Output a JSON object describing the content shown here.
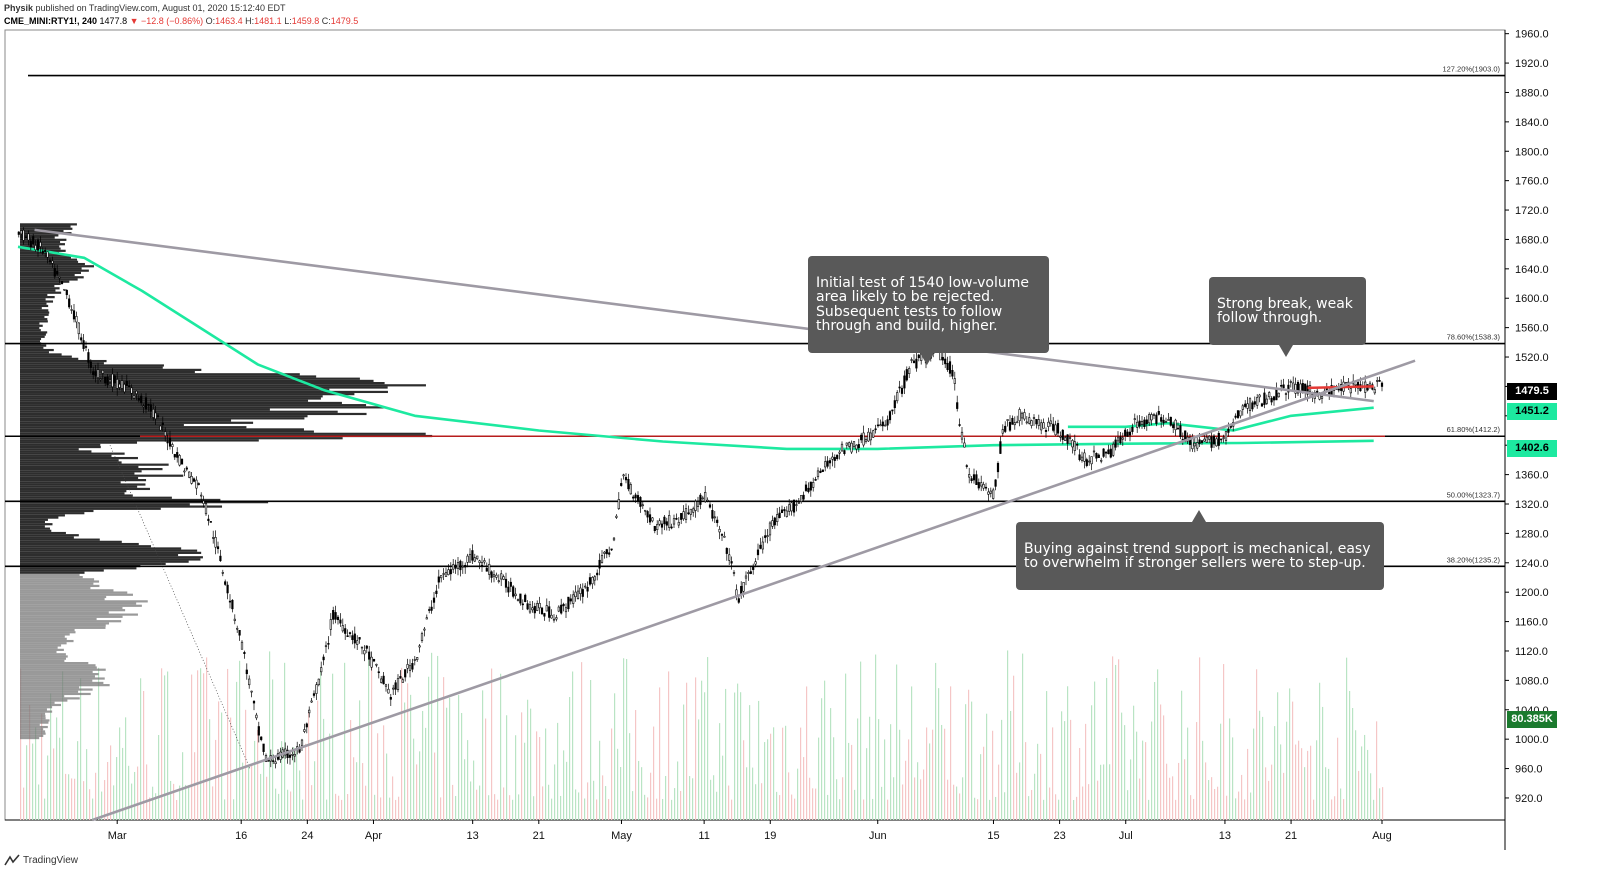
{
  "header": {
    "author": "Physik",
    "published": "published on TradingView.com, August 01, 2020 15:12:40 EDT",
    "symbol": "CME_MINI:RTY1!, 240",
    "last": "1477.8",
    "change": "−12.8 (−0.86%)",
    "o_label": "O:",
    "o": "1463.4",
    "h_label": "H:",
    "h": "1481.1",
    "l_label": "L:",
    "l": "1459.8",
    "c_label": "C:",
    "c": "1479.5"
  },
  "footer": {
    "brand": "TradingView"
  },
  "annotations": {
    "note1": "Initial test of 1540 low-volume\narea likely to be rejected.\nSubsequent tests to follow\nthrough and build, higher.",
    "note2": "Strong break, weak\nfollow through.",
    "note3": "Buying against trend support is mechanical, easy\nto overwhelm if stronger sellers were to step-up."
  },
  "price_tags": {
    "last": "1479.5",
    "ma_upper": "1451.2",
    "ma_lower": "1402.6",
    "volume": "80.385K"
  },
  "colors": {
    "ma": "#1de9a0",
    "trend": "#9e9aa4",
    "level": "#000000",
    "level_red": "#b71c1c",
    "note_bg": "#595959",
    "volume_up": "#b9e4c4",
    "volume_down": "#f5c6c6"
  },
  "chart_data": {
    "type": "candlestick",
    "y_axis": {
      "ylim": [
        890,
        1965
      ],
      "ticks": [
        920,
        960,
        1000,
        1040,
        1080,
        1120,
        1160,
        1200,
        1240,
        1280,
        1320,
        1360,
        1400,
        1440,
        1480,
        1520,
        1560,
        1600,
        1640,
        1680,
        1720,
        1760,
        1800,
        1840,
        1880,
        1920,
        1960
      ],
      "tick_labels": [
        "920.0",
        "960.0",
        "1000.0",
        "1040.0",
        "1080.0",
        "1120.0",
        "1160.0",
        "1200.0",
        "1240.0",
        "1280.0",
        "1320.0",
        "1360.0",
        "1400.0",
        "1440.0",
        "1480.0",
        "1520.0",
        "1560.0",
        "1600.0",
        "1640.0",
        "1680.0",
        "1720.0",
        "1760.0",
        "1800.0",
        "1840.0",
        "1880.0",
        "1920.0",
        "1960.0"
      ]
    },
    "x_axis": {
      "ticks": [
        {
          "label": "Mar",
          "date": "2020-03-01"
        },
        {
          "label": "16",
          "date": "2020-03-16"
        },
        {
          "label": "24",
          "date": "2020-03-24"
        },
        {
          "label": "Apr",
          "date": "2020-04-01"
        },
        {
          "label": "13",
          "date": "2020-04-13"
        },
        {
          "label": "21",
          "date": "2020-04-21"
        },
        {
          "label": "May",
          "date": "2020-05-01"
        },
        {
          "label": "11",
          "date": "2020-05-11"
        },
        {
          "label": "19",
          "date": "2020-05-19"
        },
        {
          "label": "Jun",
          "date": "2020-06-01"
        },
        {
          "label": "15",
          "date": "2020-06-15"
        },
        {
          "label": "23",
          "date": "2020-06-23"
        },
        {
          "label": "Jul",
          "date": "2020-07-01"
        },
        {
          "label": "13",
          "date": "2020-07-13"
        },
        {
          "label": "21",
          "date": "2020-07-21"
        },
        {
          "label": "Aug",
          "date": "2020-08-01"
        }
      ]
    },
    "price_path": [
      [
        "2020-02-18",
        1690
      ],
      [
        "2020-02-21",
        1665
      ],
      [
        "2020-02-24",
        1600
      ],
      [
        "2020-02-27",
        1500
      ],
      [
        "2020-03-02",
        1480
      ],
      [
        "2020-03-05",
        1450
      ],
      [
        "2020-03-09",
        1370
      ],
      [
        "2020-03-11",
        1340
      ],
      [
        "2020-03-13",
        1260
      ],
      [
        "2020-03-16",
        1130
      ],
      [
        "2020-03-18",
        1010
      ],
      [
        "2020-03-19",
        970
      ],
      [
        "2020-03-23",
        985
      ],
      [
        "2020-03-26",
        1110
      ],
      [
        "2020-03-27",
        1170
      ],
      [
        "2020-03-31",
        1120
      ],
      [
        "2020-04-03",
        1060
      ],
      [
        "2020-04-06",
        1110
      ],
      [
        "2020-04-09",
        1220
      ],
      [
        "2020-04-13",
        1250
      ],
      [
        "2020-04-17",
        1210
      ],
      [
        "2020-04-20",
        1180
      ],
      [
        "2020-04-23",
        1170
      ],
      [
        "2020-04-27",
        1210
      ],
      [
        "2020-04-30",
        1270
      ],
      [
        "2020-05-01",
        1360
      ],
      [
        "2020-05-05",
        1290
      ],
      [
        "2020-05-08",
        1300
      ],
      [
        "2020-05-11",
        1330
      ],
      [
        "2020-05-14",
        1250
      ],
      [
        "2020-05-15",
        1190
      ],
      [
        "2020-05-19",
        1290
      ],
      [
        "2020-05-22",
        1320
      ],
      [
        "2020-05-27",
        1390
      ],
      [
        "2020-05-29",
        1400
      ],
      [
        "2020-06-02",
        1430
      ],
      [
        "2020-06-05",
        1510
      ],
      [
        "2020-06-08",
        1530
      ],
      [
        "2020-06-10",
        1500
      ],
      [
        "2020-06-11",
        1420
      ],
      [
        "2020-06-12",
        1360
      ],
      [
        "2020-06-15",
        1330
      ],
      [
        "2020-06-16",
        1420
      ],
      [
        "2020-06-18",
        1440
      ],
      [
        "2020-06-23",
        1420
      ],
      [
        "2020-06-26",
        1380
      ],
      [
        "2020-06-29",
        1390
      ],
      [
        "2020-07-02",
        1430
      ],
      [
        "2020-07-06",
        1440
      ],
      [
        "2020-07-09",
        1400
      ],
      [
        "2020-07-13",
        1410
      ],
      [
        "2020-07-15",
        1450
      ],
      [
        "2020-07-17",
        1460
      ],
      [
        "2020-07-21",
        1480
      ],
      [
        "2020-07-24",
        1470
      ],
      [
        "2020-07-28",
        1480
      ],
      [
        "2020-07-31",
        1479.5
      ]
    ],
    "horizontal_levels": [
      {
        "label": "127.20%(1903.0)",
        "value": 1903.0
      },
      {
        "label": "78.60%(1538.3)",
        "value": 1538.3
      },
      {
        "label": "61.80%(1412.2)",
        "value": 1412.2
      },
      {
        "label": "50.00%(1323.7)",
        "value": 1323.7
      },
      {
        "label": "38.20%(1235.2)",
        "value": 1235.2
      }
    ],
    "trendlines": [
      {
        "name": "",
        "from": [
          "2020-02-20",
          1693
        ],
        "to": [
          "2020-07-31",
          1460
        ]
      },
      {
        "name": "",
        "from": [
          "2020-02-27",
          890
        ],
        "to": [
          "2020-08-05",
          1515
        ]
      }
    ],
    "moving_averages": [
      {
        "path": [
          [
            "2020-02-18",
            1670
          ],
          [
            "2020-02-26",
            1655
          ],
          [
            "2020-03-04",
            1610
          ],
          [
            "2020-03-11",
            1560
          ],
          [
            "2020-03-18",
            1510
          ],
          [
            "2020-03-26",
            1475
          ],
          [
            "2020-04-06",
            1440
          ],
          [
            "2020-04-21",
            1420
          ],
          [
            "2020-05-06",
            1405
          ],
          [
            "2020-05-21",
            1395
          ],
          [
            "2020-06-01",
            1395
          ],
          [
            "2020-06-15",
            1400
          ],
          [
            "2020-07-01",
            1402
          ],
          [
            "2020-07-15",
            1403
          ],
          [
            "2020-07-31",
            1406
          ]
        ]
      },
      {
        "path": [
          [
            "2020-06-24",
            1425
          ],
          [
            "2020-07-01",
            1425
          ],
          [
            "2020-07-06",
            1430
          ],
          [
            "2020-07-10",
            1425
          ],
          [
            "2020-07-14",
            1420
          ],
          [
            "2020-07-21",
            1440
          ],
          [
            "2020-07-31",
            1451
          ]
        ]
      }
    ]
  }
}
